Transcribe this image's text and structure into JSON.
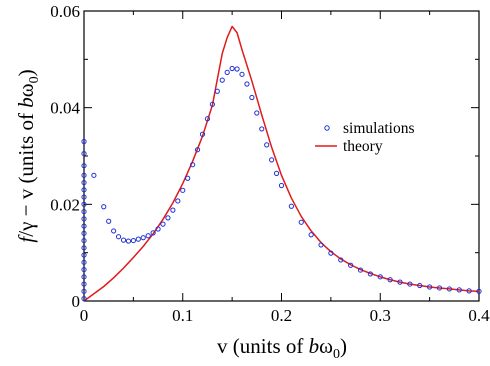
{
  "chart_data": {
    "type": "scatter",
    "x_label_parts": [
      "v (units of ",
      "b",
      "ω",
      "0",
      ")"
    ],
    "y_label_parts": [
      "f",
      "/γ − v (units of ",
      "b",
      "ω",
      "0",
      ")"
    ],
    "xlim": [
      0,
      0.4
    ],
    "ylim": [
      0,
      0.06
    ],
    "x_ticks": [
      0,
      0.1,
      0.2,
      0.3,
      0.4
    ],
    "x_tick_labels": [
      "0",
      "0.1",
      "0.2",
      "0.3",
      "0.4"
    ],
    "y_ticks": [
      0,
      0.02,
      0.04,
      0.06
    ],
    "y_tick_labels": [
      "0",
      "0.02",
      "0.04",
      "0.06"
    ],
    "grid": false,
    "legend_position": "center-right",
    "series": [
      {
        "name": "simulations",
        "style": "markers",
        "marker": "open-circle",
        "color": "#1f2fd6",
        "x": [
          0,
          0,
          0,
          0,
          0,
          0,
          0,
          0,
          0,
          0,
          0,
          0,
          0,
          0,
          0,
          0,
          0,
          0,
          0,
          0,
          0,
          0.01,
          0.02,
          0.025,
          0.03,
          0.035,
          0.04,
          0.045,
          0.05,
          0.055,
          0.06,
          0.065,
          0.07,
          0.075,
          0.08,
          0.085,
          0.09,
          0.095,
          0.1,
          0.105,
          0.11,
          0.115,
          0.12,
          0.125,
          0.13,
          0.135,
          0.14,
          0.145,
          0.15,
          0.155,
          0.16,
          0.165,
          0.17,
          0.175,
          0.18,
          0.185,
          0.19,
          0.195,
          0.2,
          0.21,
          0.22,
          0.23,
          0.24,
          0.25,
          0.26,
          0.27,
          0.28,
          0.29,
          0.3,
          0.31,
          0.32,
          0.33,
          0.34,
          0.35,
          0.36,
          0.37,
          0.38,
          0.39,
          0.4
        ],
        "y": [
          0.0005,
          0.002,
          0.0035,
          0.005,
          0.0065,
          0.008,
          0.0095,
          0.011,
          0.0125,
          0.014,
          0.0155,
          0.017,
          0.0185,
          0.02,
          0.0215,
          0.023,
          0.0245,
          0.026,
          0.028,
          0.0305,
          0.033,
          0.026,
          0.0195,
          0.0165,
          0.0145,
          0.0133,
          0.0126,
          0.0124,
          0.0125,
          0.0128,
          0.0131,
          0.0135,
          0.0141,
          0.0149,
          0.0159,
          0.0172,
          0.0188,
          0.0207,
          0.0229,
          0.0254,
          0.0282,
          0.0313,
          0.0345,
          0.0377,
          0.0407,
          0.0434,
          0.0457,
          0.0473,
          0.0481,
          0.048,
          0.0469,
          0.0449,
          0.0421,
          0.0389,
          0.0356,
          0.0323,
          0.0292,
          0.0264,
          0.0239,
          0.0196,
          0.0163,
          0.0137,
          0.0116,
          0.0099,
          0.0085,
          0.0074,
          0.0064,
          0.0056,
          0.005,
          0.0044,
          0.0039,
          0.0035,
          0.0032,
          0.0029,
          0.0027,
          0.0025,
          0.0023,
          0.0021,
          0.002
        ]
      },
      {
        "name": "theory",
        "style": "line",
        "color": "#e01b1b",
        "x": [
          0,
          0.01,
          0.02,
          0.03,
          0.04,
          0.05,
          0.06,
          0.07,
          0.08,
          0.09,
          0.1,
          0.11,
          0.12,
          0.13,
          0.14,
          0.145,
          0.15,
          0.155,
          0.16,
          0.17,
          0.18,
          0.19,
          0.2,
          0.21,
          0.22,
          0.23,
          0.24,
          0.25,
          0.26,
          0.27,
          0.28,
          0.29,
          0.3,
          0.31,
          0.32,
          0.33,
          0.34,
          0.35,
          0.36,
          0.37,
          0.38,
          0.39,
          0.4
        ],
        "y": [
          0,
          0.0015,
          0.003,
          0.0048,
          0.0068,
          0.009,
          0.0113,
          0.0139,
          0.0169,
          0.0203,
          0.0243,
          0.0289,
          0.0341,
          0.0405,
          0.0512,
          0.0545,
          0.0568,
          0.0555,
          0.052,
          0.0455,
          0.0385,
          0.0318,
          0.026,
          0.0213,
          0.0175,
          0.0145,
          0.0121,
          0.0102,
          0.0087,
          0.0075,
          0.0065,
          0.0057,
          0.005,
          0.0044,
          0.0039,
          0.0035,
          0.0032,
          0.0029,
          0.0027,
          0.0025,
          0.0023,
          0.0021,
          0.002
        ]
      }
    ]
  }
}
